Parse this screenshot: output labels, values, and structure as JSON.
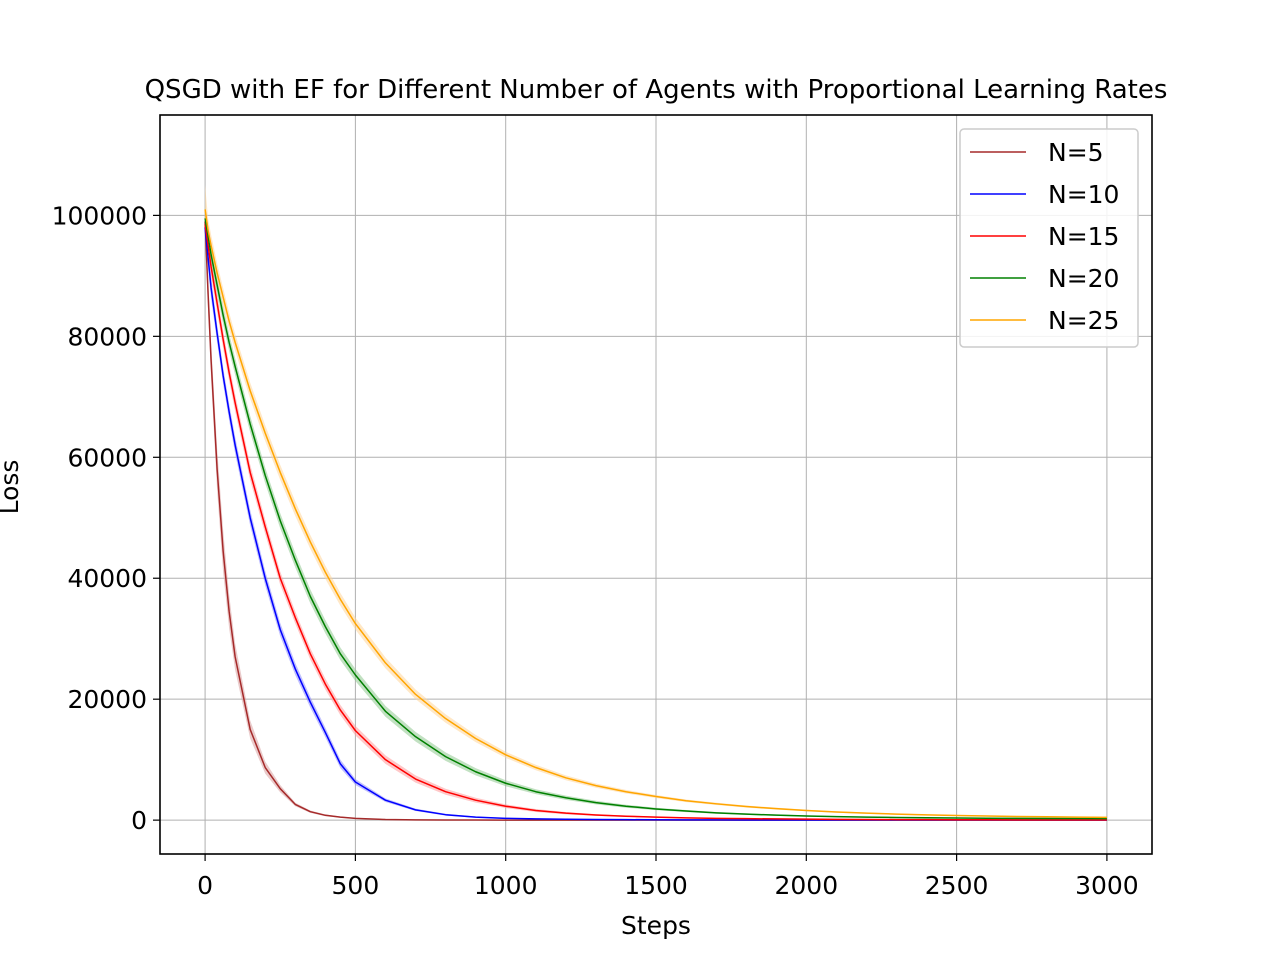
{
  "chart_data": {
    "type": "line",
    "title": "QSGD with EF for Different Number of Agents with Proportional Learning Rates",
    "xlabel": "Steps",
    "ylabel": "Loss",
    "xlim": [
      -150,
      3150
    ],
    "ylim": [
      -5600,
      116600
    ],
    "xticks": [
      0,
      500,
      1000,
      1500,
      2000,
      2500,
      3000
    ],
    "yticks": [
      0,
      20000,
      40000,
      60000,
      80000,
      100000
    ],
    "grid": true,
    "legend_position": "top-right",
    "x": [
      0,
      10,
      20,
      40,
      60,
      80,
      100,
      150,
      200,
      250,
      300,
      350,
      400,
      450,
      500,
      600,
      700,
      800,
      900,
      1000,
      1100,
      1200,
      1300,
      1400,
      1500,
      1600,
      1700,
      1800,
      1900,
      2000,
      2100,
      2200,
      2300,
      2400,
      2500,
      2600,
      2700,
      2800,
      2900,
      3000
    ],
    "series": [
      {
        "name": "N=5",
        "color": "#a52a2a",
        "band_color": "#d9a0a0",
        "values": [
          99000,
          87000,
          76000,
          58000,
          44500,
          34500,
          27000,
          15000,
          8700,
          5200,
          2600,
          1400,
          800,
          500,
          300,
          100,
          50,
          30,
          20,
          10,
          10,
          10,
          10,
          10,
          10,
          10,
          10,
          10,
          10,
          10,
          10,
          10,
          10,
          10,
          10,
          10,
          10,
          10,
          10,
          10
        ],
        "spread": [
          2000,
          3000,
          3000,
          3500,
          3500,
          2800,
          2200,
          1500,
          1000,
          600,
          300,
          200,
          150,
          100,
          80,
          50,
          30,
          20,
          10,
          10,
          10,
          10,
          10,
          10,
          10,
          10,
          10,
          10,
          10,
          10,
          10,
          10,
          10,
          10,
          10,
          10,
          10,
          10,
          10,
          10
        ]
      },
      {
        "name": "N=10",
        "color": "#0000ff",
        "band_color": "#8c8cff",
        "values": [
          98000,
          93000,
          88000,
          80500,
          73500,
          67500,
          62000,
          50000,
          40000,
          31500,
          25000,
          19500,
          14500,
          9300,
          6300,
          3300,
          1700,
          900,
          500,
          300,
          200,
          150,
          100,
          80,
          60,
          50,
          40,
          30,
          20,
          20,
          20,
          20,
          20,
          20,
          20,
          20,
          20,
          20,
          20,
          20
        ],
        "spread": [
          2000,
          2000,
          1800,
          1500,
          1400,
          1400,
          1400,
          1300,
          1200,
          1100,
          1000,
          900,
          800,
          700,
          500,
          300,
          200,
          150,
          100,
          80,
          60,
          50,
          40,
          30,
          30,
          20,
          20,
          20,
          20,
          20,
          20,
          20,
          20,
          20,
          20,
          20,
          20,
          20,
          20,
          20
        ]
      },
      {
        "name": "N=15",
        "color": "#ff0000",
        "band_color": "#ff9a9a",
        "values": [
          98500,
          95000,
          91500,
          85500,
          79500,
          74000,
          69000,
          57500,
          48500,
          40000,
          33500,
          27500,
          22500,
          18200,
          14800,
          10000,
          6800,
          4700,
          3300,
          2300,
          1600,
          1150,
          850,
          650,
          500,
          380,
          300,
          240,
          200,
          160,
          130,
          110,
          90,
          80,
          70,
          60,
          50,
          50,
          40,
          40
        ],
        "spread": [
          2000,
          1800,
          1600,
          1500,
          1500,
          1400,
          1400,
          1300,
          1200,
          1100,
          1000,
          950,
          900,
          850,
          800,
          700,
          600,
          500,
          400,
          300,
          250,
          200,
          150,
          120,
          100,
          80,
          60,
          50,
          40,
          30,
          30,
          30,
          20,
          20,
          20,
          20,
          20,
          20,
          20,
          20
        ]
      },
      {
        "name": "N=20",
        "color": "#008000",
        "band_color": "#8fc98f",
        "values": [
          99500,
          96500,
          93500,
          88500,
          83500,
          79000,
          75000,
          65500,
          57000,
          49500,
          43000,
          37000,
          32000,
          27500,
          24000,
          18000,
          13800,
          10500,
          8000,
          6100,
          4700,
          3700,
          2900,
          2300,
          1850,
          1500,
          1200,
          1000,
          820,
          680,
          580,
          500,
          440,
          390,
          350,
          320,
          300,
          280,
          260,
          250
        ],
        "spread": [
          2200,
          1800,
          1600,
          1500,
          1500,
          1450,
          1400,
          1350,
          1300,
          1250,
          1200,
          1150,
          1100,
          1050,
          1000,
          900,
          800,
          700,
          600,
          500,
          400,
          350,
          300,
          250,
          200,
          180,
          150,
          130,
          110,
          100,
          90,
          80,
          70,
          60,
          50,
          50,
          50,
          40,
          40,
          40
        ]
      },
      {
        "name": "N=25",
        "color": "#ffa500",
        "band_color": "#ffd699",
        "values": [
          101000,
          97500,
          95000,
          90500,
          86500,
          82500,
          79000,
          71000,
          64000,
          57500,
          51500,
          46000,
          41000,
          36500,
          32500,
          26000,
          20800,
          16800,
          13500,
          10800,
          8700,
          7000,
          5700,
          4700,
          3900,
          3200,
          2700,
          2250,
          1900,
          1600,
          1350,
          1150,
          1000,
          870,
          770,
          680,
          610,
          550,
          500,
          460
        ],
        "spread": [
          4000,
          2000,
          1800,
          1600,
          1500,
          1450,
          1400,
          1350,
          1300,
          1250,
          1200,
          1150,
          1100,
          1050,
          1000,
          900,
          800,
          700,
          600,
          500,
          450,
          400,
          350,
          300,
          250,
          220,
          200,
          180,
          160,
          140,
          120,
          110,
          100,
          90,
          80,
          70,
          60,
          60,
          50,
          50
        ]
      }
    ]
  }
}
